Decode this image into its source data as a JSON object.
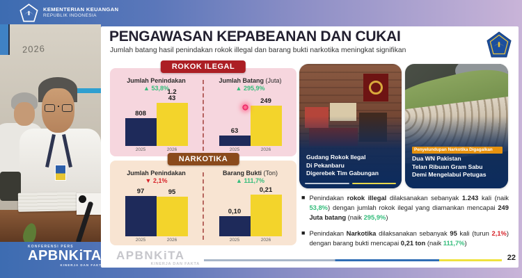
{
  "colors": {
    "green": "#35bd7c",
    "red": "#d7232a",
    "bar_navy": "#1e2a5a",
    "bar_yellow": "#f3d42b",
    "badge_red": "#ac1e24",
    "badge_brown": "#8a4a1c"
  },
  "top_header": {
    "ministry_line1": "KEMENTERIAN KEUANGAN",
    "ministry_line2": "REPUBLIK INDONESIA"
  },
  "video_panel": {
    "wall_text": "2026"
  },
  "slide": {
    "title": "PENGAWASAN KEPABEANAN DAN CUKAI",
    "subtitle": "Jumlah batang hasil penindakan rokok illegal dan barang bukti narkotika meningkat signifikan",
    "sections": [
      {
        "label": "ROKOK ILEGAL"
      },
      {
        "label": "NARKOTIKA"
      }
    ],
    "watermark": {
      "brand": "APBNKiTA",
      "tagline": "KINERJA DAN FAKTA"
    },
    "page_number": "22"
  },
  "chart_data": [
    {
      "type": "bar",
      "section": "ROKOK ILEGAL",
      "title": "Jumlah Penindakan",
      "change": {
        "arrow": "▲",
        "value": "53,8%",
        "dir": "up"
      },
      "categories": [
        "2025",
        "2026"
      ],
      "values": [
        808,
        1243
      ],
      "bar_labels": [
        "808",
        "1.243"
      ],
      "label2_lines": [
        "1.2",
        "43"
      ]
    },
    {
      "type": "bar",
      "section": "ROKOK ILEGAL",
      "title": "Jumlah Batang",
      "title_paren": "(Juta)",
      "change": {
        "arrow": "▲",
        "value": "295,9%",
        "dir": "up"
      },
      "categories": [
        "2025",
        "2026"
      ],
      "values": [
        63,
        249
      ],
      "bar_labels": [
        "63",
        "249"
      ]
    },
    {
      "type": "bar",
      "section": "NARKOTIKA",
      "title": "Jumlah Penindakan",
      "change": {
        "arrow": "▼",
        "value": "2,1%",
        "dir": "down"
      },
      "categories": [
        "2025",
        "2026"
      ],
      "values": [
        97,
        95
      ],
      "bar_labels": [
        "97",
        "95"
      ]
    },
    {
      "type": "bar",
      "section": "NARKOTIKA",
      "title": "Barang Bukti",
      "title_paren": "(Ton)",
      "change": {
        "arrow": "▲",
        "value": "111,7%",
        "dir": "up"
      },
      "categories": [
        "2025",
        "2026"
      ],
      "values": [
        0.1,
        0.21
      ],
      "bar_labels": [
        "0,10",
        "0,21"
      ]
    }
  ],
  "news_cards": [
    {
      "caption_lines": [
        "Gudang Rokok Ilegal",
        "Di Pekanbaru",
        "Digerebek Tim Gabungan"
      ]
    },
    {
      "tag": "Penyelundupan Narkotika Digagalkan",
      "caption_lines": [
        "Dua WN Pakistan",
        "Telan Ribuan Gram Sabu",
        "Demi Mengelabui Petugas"
      ]
    }
  ],
  "bullets": [
    {
      "segments": [
        {
          "t": "Penindakan "
        },
        {
          "t": "rokok illegal",
          "b": true
        },
        {
          "t": " dilaksanakan sebanyak "
        },
        {
          "t": "1.243",
          "b": true
        },
        {
          "t": " kali (naik "
        },
        {
          "t": "53,8%",
          "c": "green"
        },
        {
          "t": ") dengan jumlah rokok ilegal yang diamankan mencapai "
        },
        {
          "t": "249 Juta batang",
          "b": true
        },
        {
          "t": " (naik "
        },
        {
          "t": "295,9%",
          "c": "green"
        },
        {
          "t": ")"
        }
      ]
    },
    {
      "segments": [
        {
          "t": "Penindakan "
        },
        {
          "t": "Narkotika",
          "b": true
        },
        {
          "t": " dilaksanakan sebanyak "
        },
        {
          "t": "95",
          "b": true
        },
        {
          "t": " kali (turun "
        },
        {
          "t": "2,1%",
          "c": "red"
        },
        {
          "t": ") dengan barang bukti mencapai "
        },
        {
          "t": "0,21 ton",
          "b": true
        },
        {
          "t": " (naik "
        },
        {
          "t": "111,7%",
          "c": "green"
        },
        {
          "t": ")"
        }
      ]
    }
  ],
  "footer": {
    "eyebrow": "KONFERENSI PERS",
    "brand": "APBNKiTA",
    "tagline": "KINERJA DAN FAKTA"
  }
}
